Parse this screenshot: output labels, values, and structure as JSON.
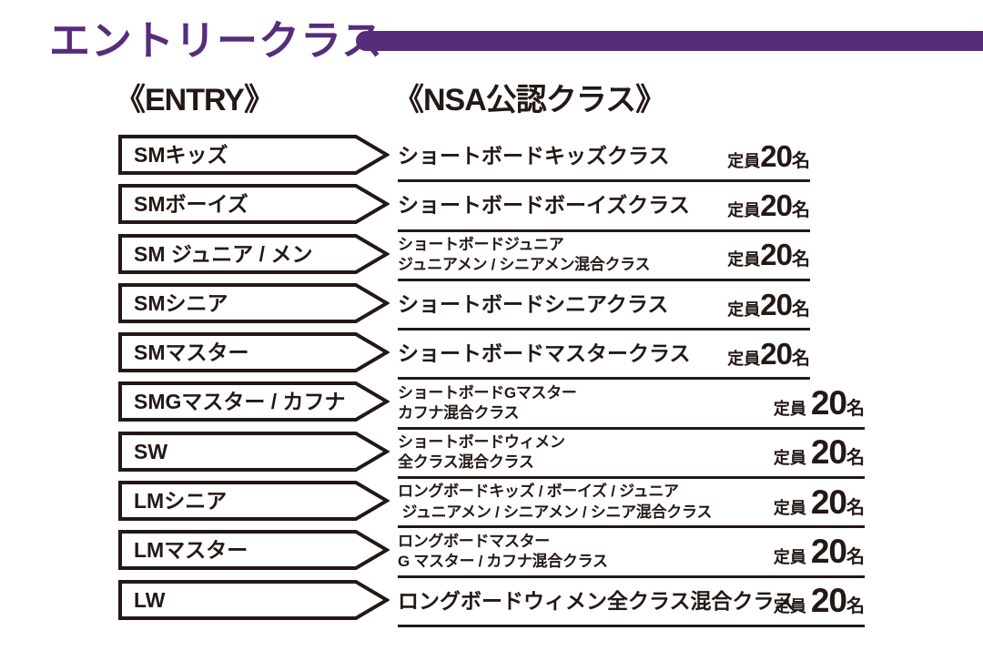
{
  "page": {
    "title": "エントリークラス",
    "entry_header": "《ENTRY》",
    "nsa_header": "《NSA公認クラス》",
    "accent_color": "#562d7b",
    "ink_color": "#231815"
  },
  "capacity": {
    "prefix": "定員",
    "number": "20",
    "suffix": "名"
  },
  "rows": [
    {
      "entry": "SMキッズ",
      "desc_lines": [
        "ショートボードキッズクラス"
      ],
      "style": "large",
      "wide": false
    },
    {
      "entry": "SMボーイズ",
      "desc_lines": [
        "ショートボードボーイズクラス"
      ],
      "style": "large",
      "wide": false
    },
    {
      "entry": "SM ジュニア / メン",
      "desc_lines": [
        "ショートボードジュニア",
        "ジュニアメン / シニアメン混合クラス"
      ],
      "style": "small",
      "wide": false
    },
    {
      "entry": "SMシニア",
      "desc_lines": [
        "ショートボードシニアクラス"
      ],
      "style": "large",
      "wide": false
    },
    {
      "entry": "SMマスター",
      "desc_lines": [
        "ショートボードマスタークラス"
      ],
      "style": "large",
      "wide": false
    },
    {
      "entry": "SMGマスター / カフナ",
      "desc_lines": [
        "ショートボードGマスター",
        "カフナ混合クラス"
      ],
      "style": "small",
      "wide": true
    },
    {
      "entry": "SW",
      "desc_lines": [
        "ショートボードウィメン",
        "全クラス混合クラス"
      ],
      "style": "small",
      "wide": true
    },
    {
      "entry": "LMシニア",
      "desc_lines": [
        "ロングボードキッズ / ボーイズ / ジュニア",
        " ジュニアメン / シニアメン / シニア混合クラス"
      ],
      "style": "small",
      "wide": true
    },
    {
      "entry": "LMマスター",
      "desc_lines": [
        "ロングボードマスター",
        "G マスター / カフナ混合クラス"
      ],
      "style": "small",
      "wide": true
    },
    {
      "entry": "LW",
      "desc_lines": [
        "ロングボードウィメン全クラス混合クラス"
      ],
      "style": "large",
      "wide": true
    }
  ]
}
